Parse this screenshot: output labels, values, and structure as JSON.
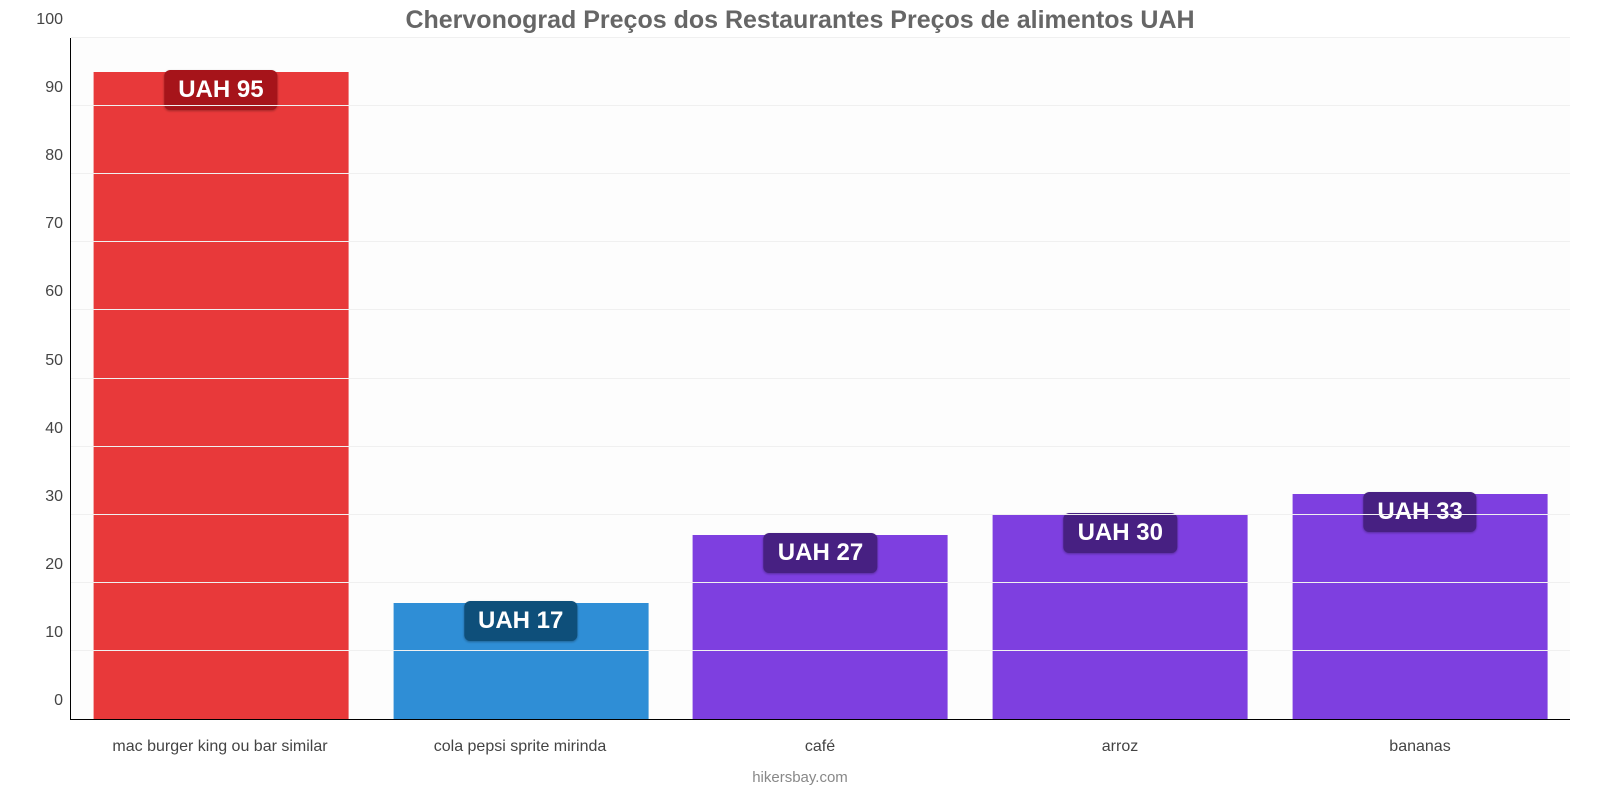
{
  "chart": {
    "type": "bar",
    "title": "Chervonograd Preços dos Restaurantes Preços de alimentos UAH",
    "title_fontsize": 25,
    "title_color": "#666666",
    "background_color": "#fdfdfd",
    "grid_color": "#f0f0f0",
    "axis_color": "#000000",
    "ylim": [
      0,
      100
    ],
    "ytick_step": 10,
    "yticks": [
      0,
      10,
      20,
      30,
      40,
      50,
      60,
      70,
      80,
      90,
      100
    ],
    "ytick_fontsize": 16,
    "ytick_color": "#444444",
    "categories": [
      "mac burger king ou bar similar",
      "cola pepsi sprite mirinda",
      "café",
      "arroz",
      "bananas"
    ],
    "xlabel_fontsize": 16,
    "xlabel_color": "#444444",
    "values": [
      95,
      17,
      27,
      30,
      33
    ],
    "value_labels": [
      "UAH 95",
      "UAH 17",
      "UAH 27",
      "UAH 30",
      "UAH 33"
    ],
    "bar_colors": [
      "#e8393a",
      "#2f8ed6",
      "#7e3fe0",
      "#7e3fe0",
      "#7e3fe0"
    ],
    "badge_colors": [
      "#a6141a",
      "#0e4f7a",
      "#472082",
      "#472082",
      "#472082"
    ],
    "badge_fontsize": 24,
    "bar_width_pct": 85,
    "source_text": "hikersbay.com",
    "source_fontsize": 15,
    "source_color": "#888888"
  }
}
